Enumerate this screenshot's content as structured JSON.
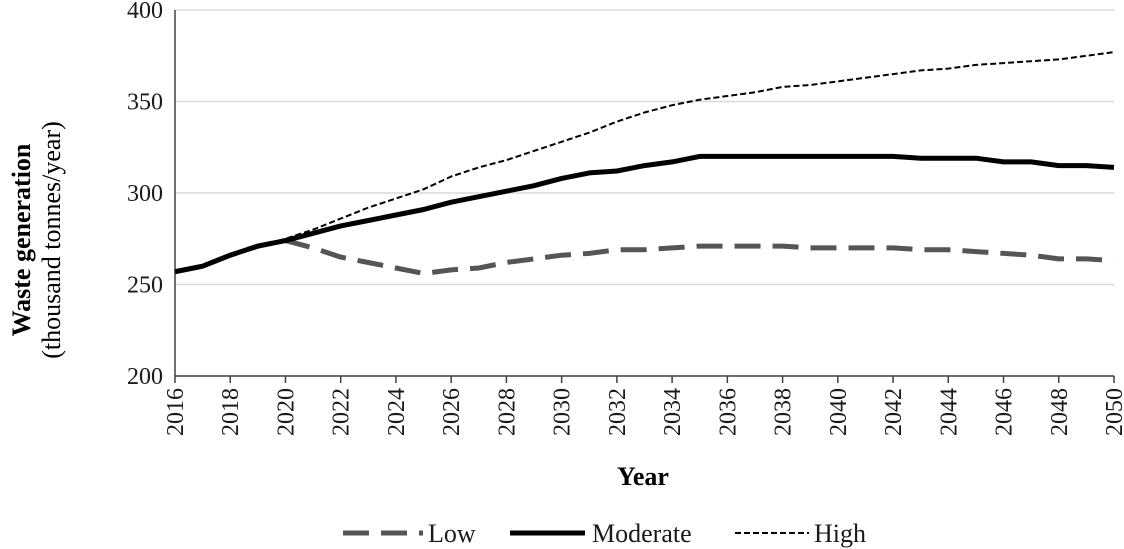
{
  "chart_data": {
    "type": "line",
    "title": "",
    "xlabel": "Year",
    "ylabel_line1": "Waste generation",
    "ylabel_line2": "(thousand tonnes/year)",
    "xlim": [
      2016,
      2050
    ],
    "ylim": [
      200,
      400
    ],
    "yticks": [
      200,
      250,
      300,
      350,
      400
    ],
    "xticks": [
      2016,
      2018,
      2020,
      2022,
      2024,
      2026,
      2028,
      2030,
      2032,
      2034,
      2036,
      2038,
      2040,
      2042,
      2044,
      2046,
      2048,
      2050
    ],
    "grid": true,
    "legend_position": "bottom",
    "x": [
      2016,
      2017,
      2018,
      2019,
      2020,
      2021,
      2022,
      2023,
      2024,
      2025,
      2026,
      2027,
      2028,
      2029,
      2030,
      2031,
      2032,
      2033,
      2034,
      2035,
      2036,
      2037,
      2038,
      2039,
      2040,
      2041,
      2042,
      2043,
      2044,
      2045,
      2046,
      2047,
      2048,
      2049,
      2050
    ],
    "series": [
      {
        "name": "Low",
        "style": "dashed",
        "color": "#555555",
        "values": [
          257,
          260,
          266,
          271,
          274,
          270,
          265,
          262,
          259,
          256,
          258,
          259,
          262,
          264,
          266,
          267,
          269,
          269,
          270,
          271,
          271,
          271,
          271,
          270,
          270,
          270,
          270,
          269,
          269,
          268,
          267,
          266,
          264,
          264,
          263
        ]
      },
      {
        "name": "Moderate",
        "style": "solid",
        "color": "#000000",
        "values": [
          257,
          260,
          266,
          271,
          274,
          278,
          282,
          285,
          288,
          291,
          295,
          298,
          301,
          304,
          308,
          311,
          312,
          315,
          317,
          320,
          320,
          320,
          320,
          320,
          320,
          320,
          320,
          319,
          319,
          319,
          317,
          317,
          315,
          315,
          314
        ]
      },
      {
        "name": "High",
        "style": "dotted",
        "color": "#000000",
        "values": [
          257,
          260,
          266,
          271,
          275,
          280,
          286,
          292,
          297,
          302,
          309,
          314,
          318,
          323,
          328,
          333,
          339,
          344,
          348,
          351,
          353,
          355,
          358,
          359,
          361,
          363,
          365,
          367,
          368,
          370,
          371,
          372,
          373,
          375,
          377
        ]
      }
    ]
  }
}
